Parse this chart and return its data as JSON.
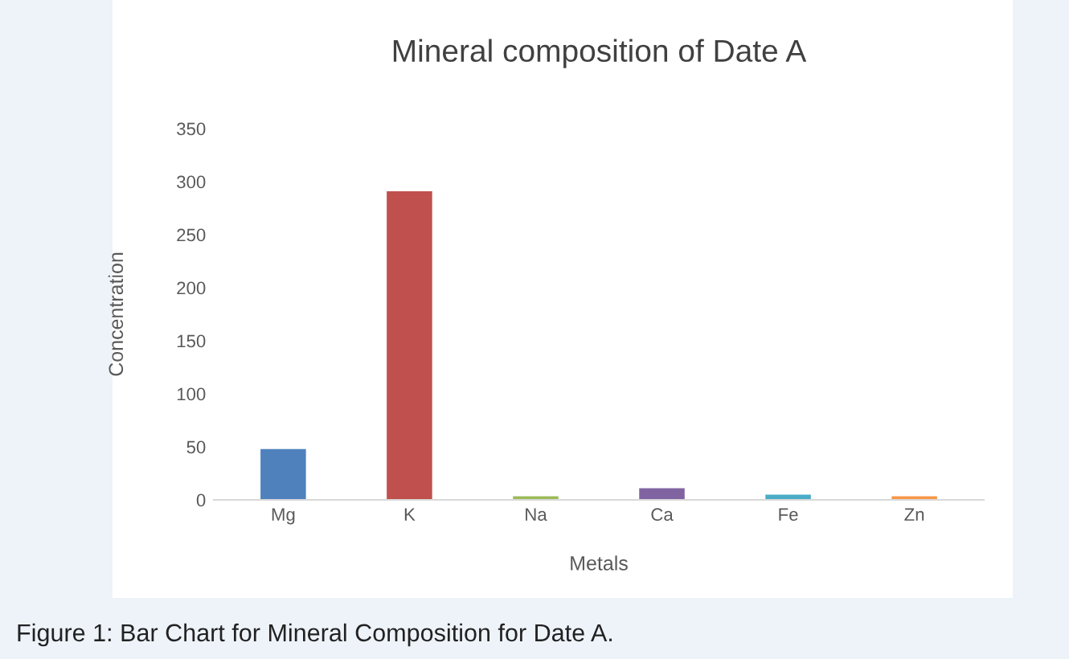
{
  "chart_data": {
    "type": "bar",
    "title": "Mineral composition of Date A",
    "xlabel": "Metals",
    "ylabel": "Concentration",
    "categories": [
      "Mg",
      "K",
      "Na",
      "Ca",
      "Fe",
      "Zn"
    ],
    "values": [
      48,
      291,
      3.5,
      11,
      5,
      3.5
    ],
    "colors": [
      "#4f81bd",
      "#c0504d",
      "#9bbb59",
      "#8064a2",
      "#4bacc6",
      "#f79646"
    ],
    "ylim": [
      0,
      350
    ],
    "yticks": [
      0,
      50,
      100,
      150,
      200,
      250,
      300,
      350
    ],
    "grid": false,
    "annotations": [
      "Figure 1: Bar Chart for Mineral Composition for Date A."
    ]
  }
}
